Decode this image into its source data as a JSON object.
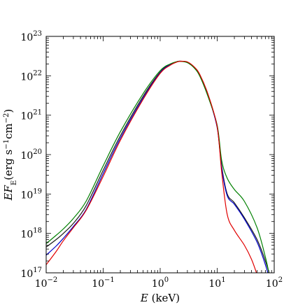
{
  "chart_data": {
    "type": "line",
    "title": "",
    "xlabel": "E (keV)",
    "ylabel": "EF_E(erg s^-1cm^-2)",
    "xscale": "log",
    "yscale": "log",
    "xlim": [
      0.01,
      100
    ],
    "ylim": [
      1e+17,
      1e+23
    ],
    "x_ticks": [
      {
        "value": 0.01,
        "base": "10",
        "exp": "−2"
      },
      {
        "value": 0.1,
        "base": "10",
        "exp": "−1"
      },
      {
        "value": 1,
        "base": "10",
        "exp": "0"
      },
      {
        "value": 10,
        "base": "10",
        "exp": "1"
      },
      {
        "value": 100,
        "base": "10",
        "exp": "2"
      }
    ],
    "y_ticks": [
      {
        "value": 1e+17,
        "base": "10",
        "exp": "17"
      },
      {
        "value": 1e+18,
        "base": "10",
        "exp": "18"
      },
      {
        "value": 1e+19,
        "base": "10",
        "exp": "19"
      },
      {
        "value": 1e+20,
        "base": "10",
        "exp": "20"
      },
      {
        "value": 1e+21,
        "base": "10",
        "exp": "21"
      },
      {
        "value": 1e+22,
        "base": "10",
        "exp": "22"
      },
      {
        "value": 1e+23,
        "base": "10",
        "exp": "23"
      }
    ],
    "grid": false,
    "legend": "none",
    "series": [
      {
        "color": "#1a1a1a",
        "x": [
          0.01,
          0.015,
          0.02,
          0.03,
          0.05,
          0.1,
          0.2,
          0.5,
          1,
          1.5,
          2,
          2.3,
          3,
          4,
          5,
          7,
          10,
          12,
          15,
          20,
          30,
          50,
          70,
          85
        ],
        "y": [
          4.5e+17,
          7e+17,
          1e+18,
          1.8e+18,
          5e+18,
          4e+19,
          3e+20,
          3e+21,
          1.25e+22,
          1.95e+22,
          2.3e+22,
          2.35e+22,
          2.2e+22,
          1.6e+22,
          1e+22,
          3e+21,
          5e+20,
          5e+19,
          1e+19,
          6e+18,
          2.5e+18,
          7e+17,
          2e+17,
          8e+16
        ]
      },
      {
        "color": "#0000cc",
        "x": [
          0.01,
          0.015,
          0.02,
          0.03,
          0.05,
          0.1,
          0.2,
          0.5,
          1,
          1.5,
          2,
          2.3,
          3,
          4,
          5,
          7,
          10,
          12,
          15,
          20,
          30,
          50,
          70,
          85
        ],
        "y": [
          2.8e+17,
          4.8e+17,
          7.5e+17,
          1.5e+18,
          4e+18,
          3.3e+19,
          2.6e+20,
          2.7e+21,
          1.2e+22,
          1.92e+22,
          2.28e+22,
          2.33e+22,
          2.2e+22,
          1.6e+22,
          1e+22,
          3e+21,
          4.8e+20,
          4.5e+19,
          9e+18,
          5.5e+18,
          2.3e+18,
          6e+17,
          1.6e+17,
          6e+16
        ]
      },
      {
        "color": "#008000",
        "x": [
          0.01,
          0.015,
          0.02,
          0.03,
          0.05,
          0.1,
          0.2,
          0.5,
          1,
          1.5,
          2,
          2.3,
          3,
          4,
          5,
          7,
          10,
          12,
          15,
          20,
          30,
          50,
          70,
          85
        ],
        "y": [
          5.5e+17,
          9e+17,
          1.3e+18,
          2.4e+18,
          6.5e+18,
          5.2e+19,
          3.8e+20,
          3.5e+21,
          1.35e+22,
          2e+22,
          2.3e+22,
          2.32e+22,
          2.15e+22,
          1.55e+22,
          9.5e+21,
          2.8e+21,
          5.5e+20,
          7e+19,
          2.5e+19,
          1.3e+19,
          6.5e+18,
          1.4e+18,
          2.5e+17,
          7e+16
        ]
      },
      {
        "color": "#e00000",
        "x": [
          0.01,
          0.015,
          0.02,
          0.03,
          0.05,
          0.1,
          0.2,
          0.5,
          1,
          1.5,
          2,
          2.3,
          3,
          4,
          5,
          7,
          10,
          12,
          15,
          20,
          30,
          40,
          50,
          60
        ],
        "y": [
          1.6e+17,
          3.5e+17,
          6.5e+17,
          1.4e+18,
          3.8e+18,
          2.8e+19,
          2.3e+20,
          2.5e+21,
          1.15e+22,
          1.85e+22,
          2.25e+22,
          2.33e+22,
          2.25e+22,
          1.65e+22,
          1.05e+22,
          3.2e+21,
          5e+20,
          3.5e+19,
          3e+18,
          1.2e+18,
          5e+17,
          2.2e+17,
          9e+16,
          4e+16
        ]
      }
    ]
  }
}
